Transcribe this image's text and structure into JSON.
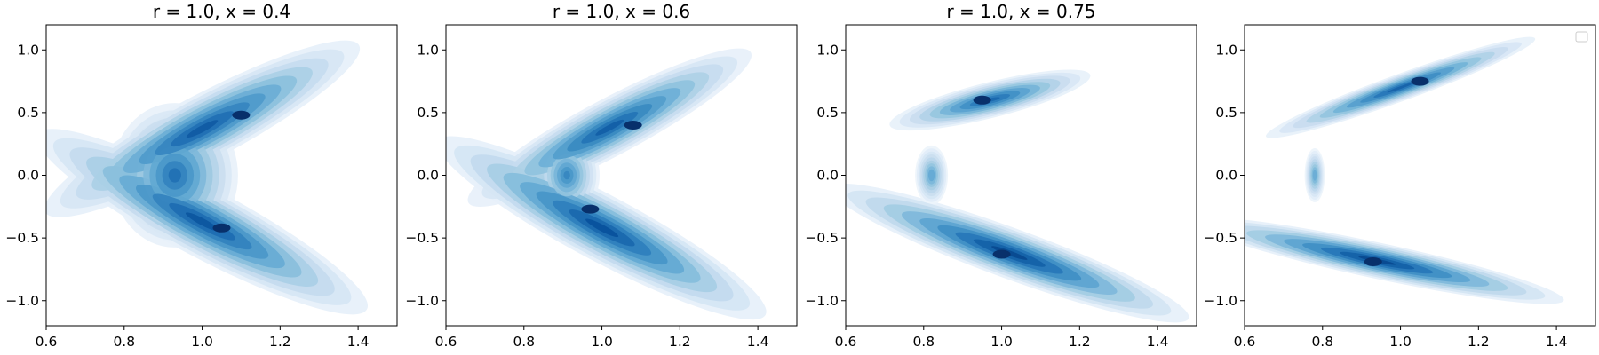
{
  "chart_data": [
    {
      "type": "contour",
      "title": "r = 1.0, x = 0.4",
      "xlim": [
        0.6,
        1.5
      ],
      "ylim": [
        -1.2,
        1.2
      ],
      "xticks": [
        0.6,
        0.8,
        1.0,
        1.2,
        1.4
      ],
      "yticks": [
        -1.0,
        -0.5,
        0.0,
        0.5,
        1.0
      ],
      "xtick_labels": [
        "0.6",
        "0.8",
        "1.0",
        "1.2",
        "1.4"
      ],
      "ytick_labels": [
        "−1.0",
        "−0.5",
        "0.0",
        "0.5",
        "1.0"
      ],
      "colormap": "Blues",
      "levels": 10,
      "lobes": [
        {
          "center": [
            1.0,
            -0.37
          ],
          "angle_deg": -28,
          "sx": 0.19,
          "sy": 0.11,
          "weight": 1.05
        },
        {
          "center": [
            1.0,
            0.37
          ],
          "angle_deg": 28,
          "sx": 0.19,
          "sy": 0.11,
          "weight": 1.0
        },
        {
          "center": [
            0.93,
            0.0
          ],
          "angle_deg": 0,
          "sx": 0.09,
          "sy": 0.32,
          "weight": 0.75
        }
      ],
      "peaks": [
        [
          1.1,
          0.48
        ],
        [
          1.05,
          -0.42
        ]
      ],
      "legend": false
    },
    {
      "type": "contour",
      "title": "r = 1.0, x = 0.6",
      "xlim": [
        0.6,
        1.5
      ],
      "ylim": [
        -1.2,
        1.2
      ],
      "xticks": [
        0.6,
        0.8,
        1.0,
        1.2,
        1.4
      ],
      "yticks": [
        -1.0,
        -0.5,
        0.0,
        0.5,
        1.0
      ],
      "xtick_labels": [
        "0.6",
        "0.8",
        "1.0",
        "1.2",
        "1.4"
      ],
      "ytick_labels": [
        "−1.0",
        "−0.5",
        "0.0",
        "0.5",
        "1.0"
      ],
      "colormap": "Blues",
      "levels": 10,
      "lobes": [
        {
          "center": [
            1.0,
            -0.42
          ],
          "angle_deg": -28,
          "sx": 0.18,
          "sy": 0.1,
          "weight": 1.1
        },
        {
          "center": [
            1.02,
            0.38
          ],
          "angle_deg": 28,
          "sx": 0.18,
          "sy": 0.1,
          "weight": 0.95
        },
        {
          "center": [
            0.91,
            0.0
          ],
          "angle_deg": 0,
          "sx": 0.07,
          "sy": 0.28,
          "weight": 0.5
        }
      ],
      "peaks": [
        [
          0.97,
          -0.27
        ],
        [
          1.08,
          0.4
        ]
      ],
      "legend": false
    },
    {
      "type": "contour",
      "title": "r = 1.0, x = 0.75",
      "xlim": [
        0.6,
        1.5
      ],
      "ylim": [
        -1.2,
        1.2
      ],
      "xticks": [
        0.6,
        0.8,
        1.0,
        1.2,
        1.4
      ],
      "yticks": [
        -1.0,
        -0.5,
        0.0,
        0.5,
        1.0
      ],
      "xtick_labels": [
        "0.6",
        "0.8",
        "1.0",
        "1.2",
        "1.4"
      ],
      "ytick_labels": [
        "−1.0",
        "−0.5",
        "0.0",
        "0.5",
        "1.0"
      ],
      "colormap": "Blues",
      "levels": 10,
      "lobes": [
        {
          "center": [
            1.02,
            -0.62
          ],
          "angle_deg": -20,
          "sx": 0.17,
          "sy": 0.07,
          "weight": 1.2
        },
        {
          "center": [
            0.97,
            0.6
          ],
          "angle_deg": 14,
          "sx": 0.13,
          "sy": 0.07,
          "weight": 0.85
        },
        {
          "center": [
            0.82,
            0.0
          ],
          "angle_deg": 0,
          "sx": 0.08,
          "sy": 0.45,
          "weight": 0.22
        }
      ],
      "peaks": [
        [
          1.0,
          -0.63
        ],
        [
          0.95,
          0.6
        ]
      ],
      "legend": false
    },
    {
      "type": "contour",
      "title": "",
      "xlim": [
        0.6,
        1.5
      ],
      "ylim": [
        -1.2,
        1.2
      ],
      "xticks": [
        0.6,
        0.8,
        1.0,
        1.2,
        1.4
      ],
      "yticks": [
        -1.0,
        -0.5,
        0.0,
        0.5,
        1.0
      ],
      "xtick_labels": [
        "0.6",
        "0.8",
        "1.0",
        "1.2",
        "1.4"
      ],
      "ytick_labels": [
        "−1.0",
        "−0.5",
        "0.0",
        "0.5",
        "1.0"
      ],
      "colormap": "Blues",
      "levels": 10,
      "lobes": [
        {
          "center": [
            0.94,
            -0.68
          ],
          "angle_deg": -12,
          "sx": 0.17,
          "sy": 0.05,
          "weight": 1.2
        },
        {
          "center": [
            1.0,
            0.7
          ],
          "angle_deg": 20,
          "sx": 0.17,
          "sy": 0.05,
          "weight": 0.9
        },
        {
          "center": [
            0.78,
            0.0
          ],
          "angle_deg": 0,
          "sx": 0.06,
          "sy": 0.5,
          "weight": 0.18
        }
      ],
      "peaks": [
        [
          0.93,
          -0.69
        ],
        [
          1.05,
          0.75
        ]
      ],
      "legend": true
    }
  ]
}
